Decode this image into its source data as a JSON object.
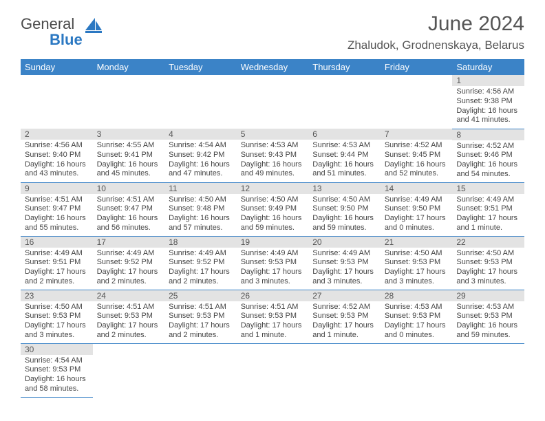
{
  "logo": {
    "word1": "General",
    "word2": "Blue"
  },
  "title": "June 2024",
  "location": "Zhaludok, Grodnenskaya, Belarus",
  "colors": {
    "header_bg": "#3b83c7",
    "header_text": "#ffffff",
    "daynum_bg": "#e3e3e3",
    "border": "#3b83c7",
    "text": "#444444",
    "title_text": "#555555",
    "logo_gray": "#4a4a4a",
    "logo_blue": "#2b78c2",
    "background": "#ffffff"
  },
  "weekdays": [
    "Sunday",
    "Monday",
    "Tuesday",
    "Wednesday",
    "Thursday",
    "Friday",
    "Saturday"
  ],
  "weeks": [
    [
      null,
      null,
      null,
      null,
      null,
      null,
      {
        "num": "1",
        "sunrise": "Sunrise: 4:56 AM",
        "sunset": "Sunset: 9:38 PM",
        "day1": "Daylight: 16 hours",
        "day2": "and 41 minutes."
      }
    ],
    [
      {
        "num": "2",
        "sunrise": "Sunrise: 4:56 AM",
        "sunset": "Sunset: 9:40 PM",
        "day1": "Daylight: 16 hours",
        "day2": "and 43 minutes."
      },
      {
        "num": "3",
        "sunrise": "Sunrise: 4:55 AM",
        "sunset": "Sunset: 9:41 PM",
        "day1": "Daylight: 16 hours",
        "day2": "and 45 minutes."
      },
      {
        "num": "4",
        "sunrise": "Sunrise: 4:54 AM",
        "sunset": "Sunset: 9:42 PM",
        "day1": "Daylight: 16 hours",
        "day2": "and 47 minutes."
      },
      {
        "num": "5",
        "sunrise": "Sunrise: 4:53 AM",
        "sunset": "Sunset: 9:43 PM",
        "day1": "Daylight: 16 hours",
        "day2": "and 49 minutes."
      },
      {
        "num": "6",
        "sunrise": "Sunrise: 4:53 AM",
        "sunset": "Sunset: 9:44 PM",
        "day1": "Daylight: 16 hours",
        "day2": "and 51 minutes."
      },
      {
        "num": "7",
        "sunrise": "Sunrise: 4:52 AM",
        "sunset": "Sunset: 9:45 PM",
        "day1": "Daylight: 16 hours",
        "day2": "and 52 minutes."
      },
      {
        "num": "8",
        "sunrise": "Sunrise: 4:52 AM",
        "sunset": "Sunset: 9:46 PM",
        "day1": "Daylight: 16 hours",
        "day2": "and 54 minutes."
      }
    ],
    [
      {
        "num": "9",
        "sunrise": "Sunrise: 4:51 AM",
        "sunset": "Sunset: 9:47 PM",
        "day1": "Daylight: 16 hours",
        "day2": "and 55 minutes."
      },
      {
        "num": "10",
        "sunrise": "Sunrise: 4:51 AM",
        "sunset": "Sunset: 9:47 PM",
        "day1": "Daylight: 16 hours",
        "day2": "and 56 minutes."
      },
      {
        "num": "11",
        "sunrise": "Sunrise: 4:50 AM",
        "sunset": "Sunset: 9:48 PM",
        "day1": "Daylight: 16 hours",
        "day2": "and 57 minutes."
      },
      {
        "num": "12",
        "sunrise": "Sunrise: 4:50 AM",
        "sunset": "Sunset: 9:49 PM",
        "day1": "Daylight: 16 hours",
        "day2": "and 59 minutes."
      },
      {
        "num": "13",
        "sunrise": "Sunrise: 4:50 AM",
        "sunset": "Sunset: 9:50 PM",
        "day1": "Daylight: 16 hours",
        "day2": "and 59 minutes."
      },
      {
        "num": "14",
        "sunrise": "Sunrise: 4:49 AM",
        "sunset": "Sunset: 9:50 PM",
        "day1": "Daylight: 17 hours",
        "day2": "and 0 minutes."
      },
      {
        "num": "15",
        "sunrise": "Sunrise: 4:49 AM",
        "sunset": "Sunset: 9:51 PM",
        "day1": "Daylight: 17 hours",
        "day2": "and 1 minute."
      }
    ],
    [
      {
        "num": "16",
        "sunrise": "Sunrise: 4:49 AM",
        "sunset": "Sunset: 9:51 PM",
        "day1": "Daylight: 17 hours",
        "day2": "and 2 minutes."
      },
      {
        "num": "17",
        "sunrise": "Sunrise: 4:49 AM",
        "sunset": "Sunset: 9:52 PM",
        "day1": "Daylight: 17 hours",
        "day2": "and 2 minutes."
      },
      {
        "num": "18",
        "sunrise": "Sunrise: 4:49 AM",
        "sunset": "Sunset: 9:52 PM",
        "day1": "Daylight: 17 hours",
        "day2": "and 2 minutes."
      },
      {
        "num": "19",
        "sunrise": "Sunrise: 4:49 AM",
        "sunset": "Sunset: 9:53 PM",
        "day1": "Daylight: 17 hours",
        "day2": "and 3 minutes."
      },
      {
        "num": "20",
        "sunrise": "Sunrise: 4:49 AM",
        "sunset": "Sunset: 9:53 PM",
        "day1": "Daylight: 17 hours",
        "day2": "and 3 minutes."
      },
      {
        "num": "21",
        "sunrise": "Sunrise: 4:50 AM",
        "sunset": "Sunset: 9:53 PM",
        "day1": "Daylight: 17 hours",
        "day2": "and 3 minutes."
      },
      {
        "num": "22",
        "sunrise": "Sunrise: 4:50 AM",
        "sunset": "Sunset: 9:53 PM",
        "day1": "Daylight: 17 hours",
        "day2": "and 3 minutes."
      }
    ],
    [
      {
        "num": "23",
        "sunrise": "Sunrise: 4:50 AM",
        "sunset": "Sunset: 9:53 PM",
        "day1": "Daylight: 17 hours",
        "day2": "and 3 minutes."
      },
      {
        "num": "24",
        "sunrise": "Sunrise: 4:51 AM",
        "sunset": "Sunset: 9:53 PM",
        "day1": "Daylight: 17 hours",
        "day2": "and 2 minutes."
      },
      {
        "num": "25",
        "sunrise": "Sunrise: 4:51 AM",
        "sunset": "Sunset: 9:53 PM",
        "day1": "Daylight: 17 hours",
        "day2": "and 2 minutes."
      },
      {
        "num": "26",
        "sunrise": "Sunrise: 4:51 AM",
        "sunset": "Sunset: 9:53 PM",
        "day1": "Daylight: 17 hours",
        "day2": "and 1 minute."
      },
      {
        "num": "27",
        "sunrise": "Sunrise: 4:52 AM",
        "sunset": "Sunset: 9:53 PM",
        "day1": "Daylight: 17 hours",
        "day2": "and 1 minute."
      },
      {
        "num": "28",
        "sunrise": "Sunrise: 4:53 AM",
        "sunset": "Sunset: 9:53 PM",
        "day1": "Daylight: 17 hours",
        "day2": "and 0 minutes."
      },
      {
        "num": "29",
        "sunrise": "Sunrise: 4:53 AM",
        "sunset": "Sunset: 9:53 PM",
        "day1": "Daylight: 16 hours",
        "day2": "and 59 minutes."
      }
    ],
    [
      {
        "num": "30",
        "sunrise": "Sunrise: 4:54 AM",
        "sunset": "Sunset: 9:53 PM",
        "day1": "Daylight: 16 hours",
        "day2": "and 58 minutes."
      },
      null,
      null,
      null,
      null,
      null,
      null
    ]
  ]
}
